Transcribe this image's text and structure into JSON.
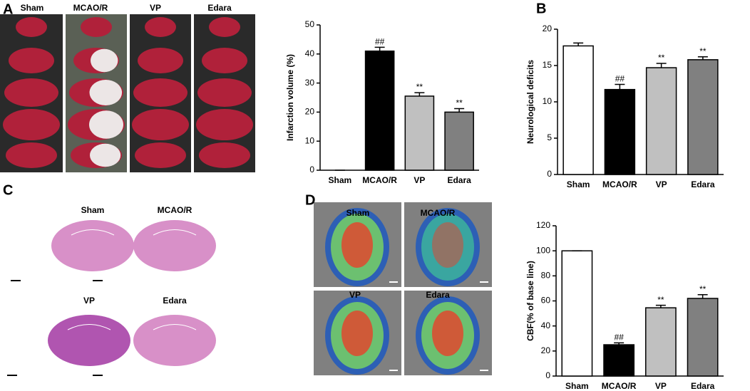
{
  "panels": {
    "labels": [
      "A",
      "B",
      "C",
      "D"
    ],
    "ttc_groups": [
      "Sham",
      "MCAO/R",
      "VP",
      "Edara"
    ],
    "he_groups": [
      "Sham",
      "MCAO/R",
      "VP",
      "Edara"
    ],
    "cbf_groups": [
      "Sham",
      "MCAO/R",
      "VP",
      "Edara"
    ]
  },
  "chart_data": [
    {
      "type": "bar",
      "y_label": "Infarction volume (%)",
      "categories": [
        "Sham",
        "MCAO/R",
        "VP",
        "Edara"
      ],
      "values": [
        0,
        41,
        25.5,
        20
      ],
      "errors": [
        0,
        1.3,
        1.2,
        1.2
      ],
      "bar_labels": [
        null,
        "##",
        "**",
        "**"
      ],
      "colors": [
        "#ffffff",
        "#000000",
        "#c0c0c0",
        "#808080"
      ],
      "ylim": [
        0,
        50
      ],
      "yticks": [
        0,
        10,
        20,
        30,
        40,
        50
      ]
    },
    {
      "type": "bar",
      "y_label": "Neurological deficits",
      "categories": [
        "Sham",
        "MCAO/R",
        "VP",
        "Edara"
      ],
      "values": [
        17.7,
        11.7,
        14.7,
        15.8
      ],
      "errors": [
        0.4,
        0.7,
        0.6,
        0.4
      ],
      "bar_labels": [
        null,
        "##",
        "**",
        "**"
      ],
      "colors": [
        "#ffffff",
        "#000000",
        "#c0c0c0",
        "#808080"
      ],
      "ylim": [
        0,
        20
      ],
      "yticks": [
        0,
        5,
        10,
        15,
        20
      ]
    },
    {
      "type": "bar",
      "y_label": "CBF(% of base line)",
      "categories": [
        "Sham",
        "MCAO/R",
        "VP",
        "Edara"
      ],
      "values": [
        100,
        25,
        54.5,
        62
      ],
      "errors": [
        0,
        1.5,
        2,
        3
      ],
      "bar_labels": [
        null,
        "##",
        "**",
        "**"
      ],
      "colors": [
        "#ffffff",
        "#000000",
        "#c0c0c0",
        "#808080"
      ],
      "ylim": [
        0,
        120
      ],
      "yticks": [
        0,
        20,
        40,
        60,
        80,
        100,
        120
      ]
    }
  ]
}
